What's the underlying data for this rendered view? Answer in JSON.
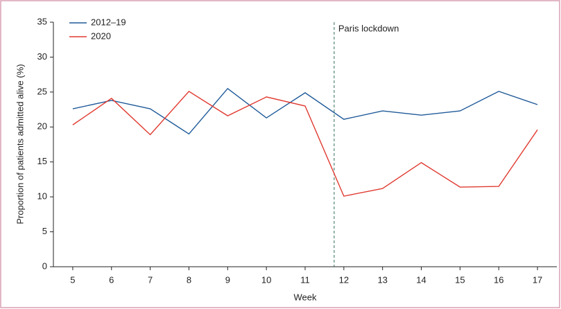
{
  "chart_data": {
    "type": "line",
    "x": [
      5,
      6,
      7,
      8,
      9,
      10,
      11,
      12,
      13,
      14,
      15,
      16,
      17
    ],
    "series": [
      {
        "name": "2012–19",
        "color": "#1f5a99",
        "values": [
          22.6,
          23.8,
          22.6,
          19.0,
          25.5,
          21.3,
          24.9,
          21.1,
          22.3,
          21.7,
          22.3,
          25.1,
          23.2
        ]
      },
      {
        "name": "2020",
        "color": "#e03a30",
        "values": [
          20.3,
          24.1,
          18.9,
          25.1,
          21.6,
          24.3,
          23.0,
          10.1,
          11.2,
          14.9,
          11.4,
          11.5,
          19.6
        ]
      }
    ],
    "xlabel": "Week",
    "ylabel": "Proportion of patients admitted alive (%)",
    "xlim": [
      4.5,
      17.5
    ],
    "xticks": [
      5,
      6,
      7,
      8,
      9,
      10,
      11,
      12,
      13,
      14,
      15,
      16,
      17
    ],
    "ylim": [
      0,
      35
    ],
    "yticks": [
      0,
      5,
      10,
      15,
      20,
      25,
      30,
      35
    ],
    "annotations": [
      {
        "text": "Paris lockdown",
        "x": 11.75
      }
    ],
    "legend": "upper left"
  }
}
